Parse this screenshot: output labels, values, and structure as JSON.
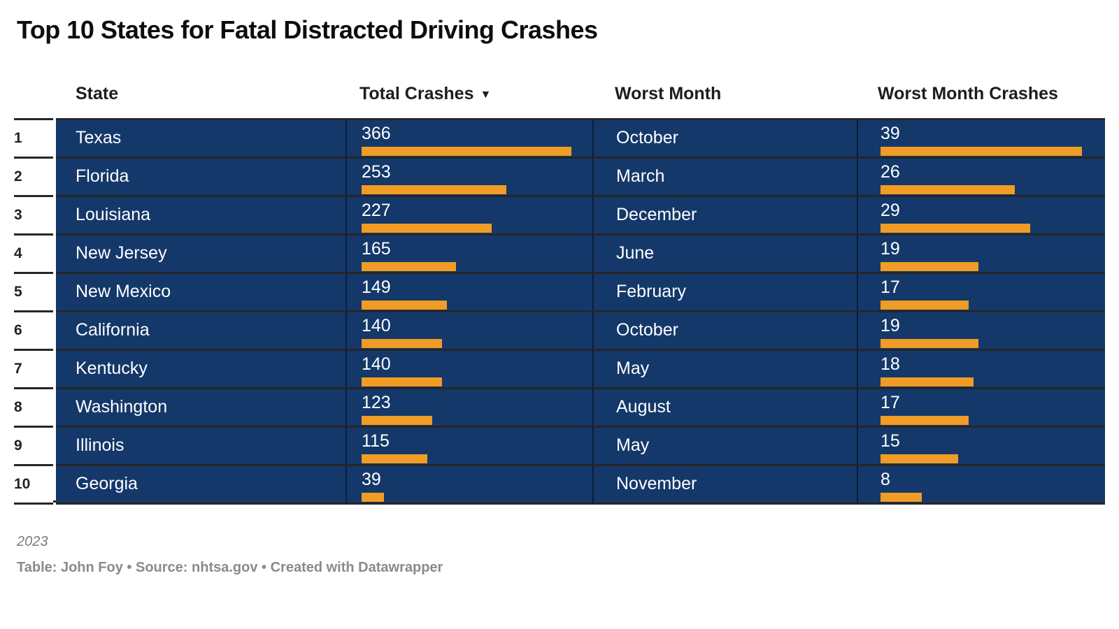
{
  "title": "Top 10 States for Fatal Distracted Driving Crashes",
  "header": {
    "state": "State",
    "total": "Total Crashes",
    "sort_arrow": "▼",
    "month": "Worst Month",
    "wmc": "Worst Month Crashes"
  },
  "rows": [
    {
      "rank": "1",
      "state": "Texas",
      "total": 366,
      "month": "October",
      "wmc": 39
    },
    {
      "rank": "2",
      "state": "Florida",
      "total": 253,
      "month": "March",
      "wmc": 26
    },
    {
      "rank": "3",
      "state": "Louisiana",
      "total": 227,
      "month": "December",
      "wmc": 29
    },
    {
      "rank": "4",
      "state": "New Jersey",
      "total": 165,
      "month": "June",
      "wmc": 19
    },
    {
      "rank": "5",
      "state": "New Mexico",
      "total": 149,
      "month": "February",
      "wmc": 17
    },
    {
      "rank": "6",
      "state": "California",
      "total": 140,
      "month": "October",
      "wmc": 19
    },
    {
      "rank": "7",
      "state": "Kentucky",
      "total": 140,
      "month": "May",
      "wmc": 18
    },
    {
      "rank": "8",
      "state": "Washington",
      "total": 123,
      "month": "August",
      "wmc": 17
    },
    {
      "rank": "9",
      "state": "Illinois",
      "total": 115,
      "month": "May",
      "wmc": 15
    },
    {
      "rank": "10",
      "state": "Georgia",
      "total": 39,
      "month": "November",
      "wmc": 8
    }
  ],
  "bar_max": {
    "total": 366,
    "wmc": 39
  },
  "colors": {
    "row_bg": "#14386A",
    "bar": "#F09C25",
    "border": "#262626",
    "header_text": "#1d1d1d",
    "footer_text": "#8a8a8a"
  },
  "footer": {
    "note": "2023",
    "attribution_parts": [
      {
        "text": "Table: ",
        "link": false,
        "name": "table-label"
      },
      {
        "text": "John Foy",
        "link": true,
        "name": "author-link"
      },
      {
        "text": " • ",
        "link": false,
        "name": "separator"
      },
      {
        "text": "Source: ",
        "link": false,
        "name": "source-label"
      },
      {
        "text": "nhtsa.gov",
        "link": true,
        "name": "source-link"
      },
      {
        "text": " • ",
        "link": false,
        "name": "separator"
      },
      {
        "text": "Created with ",
        "link": false,
        "name": "created-label"
      },
      {
        "text": "Datawrapper",
        "link": true,
        "name": "datawrapper-link"
      }
    ]
  },
  "chart_data": {
    "type": "table",
    "title": "Top 10 States for Fatal Distracted Driving Crashes",
    "columns": [
      "State",
      "Total Crashes",
      "Worst Month",
      "Worst Month Crashes"
    ],
    "categories": [
      "Texas",
      "Florida",
      "Louisiana",
      "New Jersey",
      "New Mexico",
      "California",
      "Kentucky",
      "Washington",
      "Illinois",
      "Georgia"
    ],
    "series": [
      {
        "name": "Total Crashes",
        "values": [
          366,
          253,
          227,
          165,
          149,
          140,
          140,
          123,
          115,
          39
        ]
      },
      {
        "name": "Worst Month Crashes",
        "values": [
          39,
          26,
          29,
          19,
          17,
          19,
          18,
          17,
          15,
          8
        ]
      }
    ],
    "worst_months": [
      "October",
      "March",
      "December",
      "June",
      "February",
      "October",
      "May",
      "August",
      "May",
      "November"
    ],
    "sort": "Total Crashes descending",
    "bar_scale_max": {
      "Total Crashes": 366,
      "Worst Month Crashes": 39
    },
    "note": "2023",
    "byline": "Table: John Foy • Source: nhtsa.gov • Created with Datawrapper"
  }
}
